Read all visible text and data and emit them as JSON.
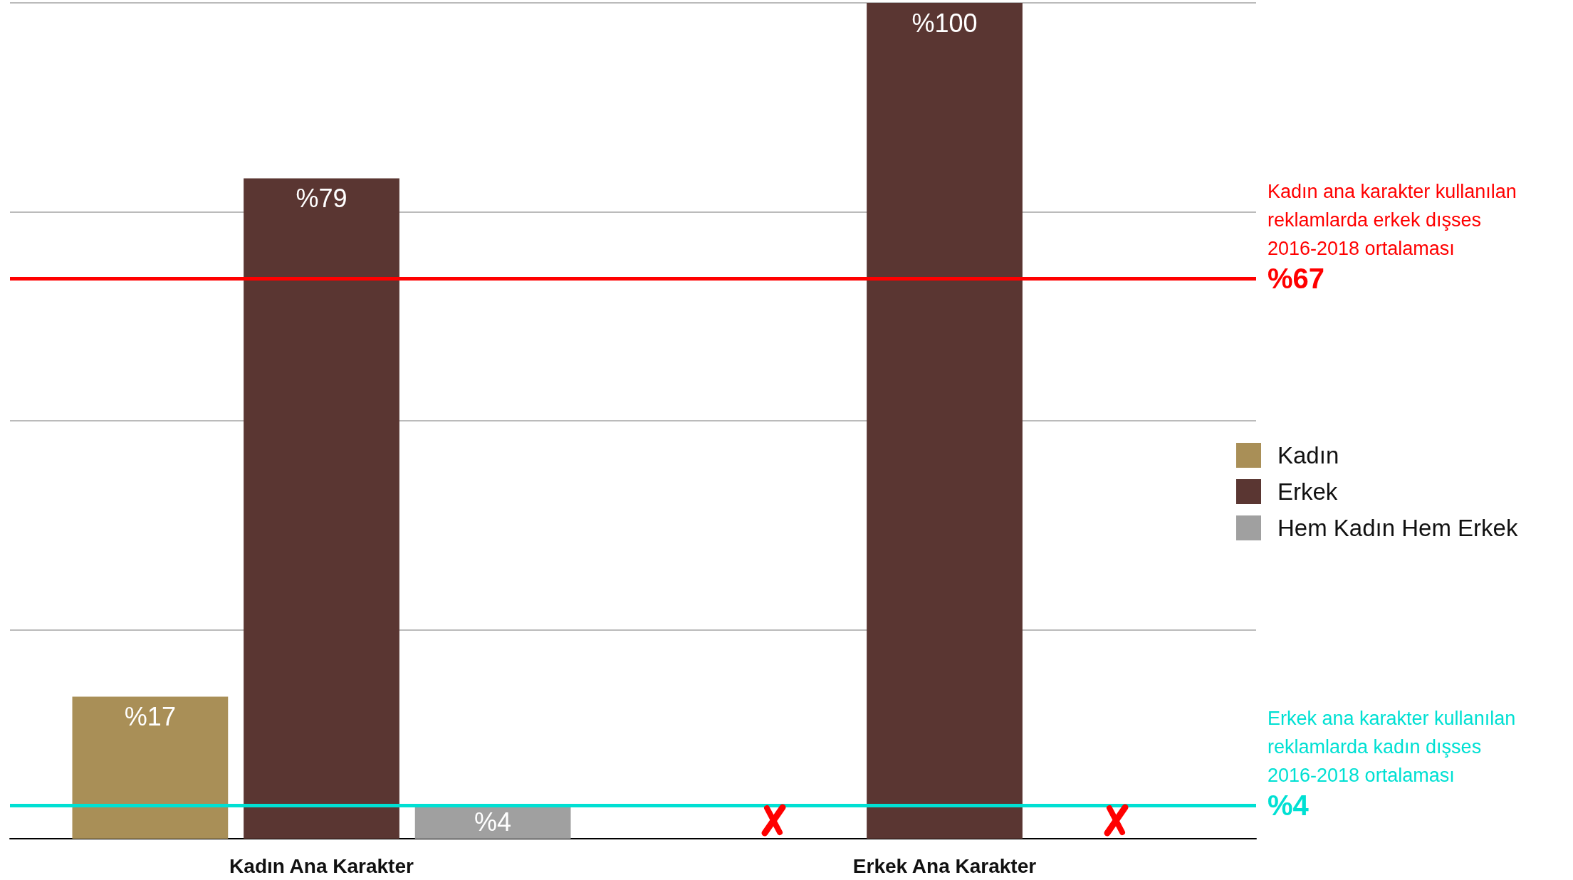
{
  "chart_data": {
    "type": "bar",
    "categories": [
      "Kadın Ana Karakter",
      "Erkek Ana Karakter"
    ],
    "series": [
      {
        "name": "Kadın",
        "color": "#a98f57",
        "values": [
          17,
          0
        ],
        "value_labels": [
          "%17",
          null
        ]
      },
      {
        "name": "Erkek",
        "color": "#5a3632",
        "values": [
          79,
          100
        ],
        "value_labels": [
          "%79",
          "%100"
        ]
      },
      {
        "name": "Hem Kadın Hem Erkek",
        "color": "#a0a0a0",
        "values": [
          4,
          0
        ],
        "value_labels": [
          "%4",
          null
        ]
      }
    ],
    "ylim": [
      0,
      100
    ],
    "yticks": [
      {
        "value": 0,
        "label": null
      },
      {
        "value": 25,
        "label": null
      },
      {
        "value": 50,
        "label": null
      },
      {
        "value": 75,
        "label": null
      },
      {
        "value": 100,
        "label": null
      }
    ],
    "tick_labels": "x",
    "grid": "y",
    "legend": "right",
    "ref_lines": [
      {
        "axis": "y",
        "value": 67,
        "label": "Kadın ana karakter kullanılan\nreklamlarda erkek dışses\n2016-2018 ortalaması\n%67",
        "color": "#ff0000"
      },
      {
        "axis": "y",
        "value": 4,
        "label": "Erkek ana karakter kullanılan\nreklamlarda kadın dışses\n2016-2018 ortalaması\n%4",
        "color": "#00e0d3"
      }
    ]
  }
}
